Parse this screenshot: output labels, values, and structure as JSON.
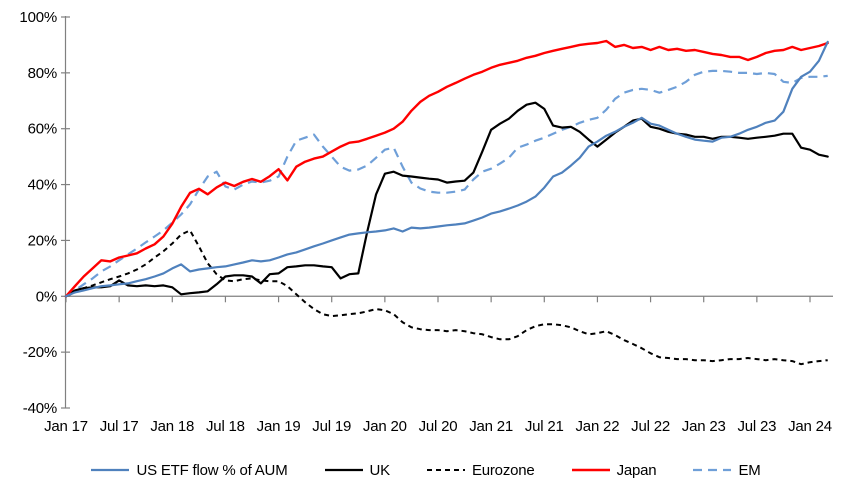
{
  "chart_data": {
    "type": "line",
    "title": "",
    "x_unit": "months, Jan 2017 - Mar 2024",
    "x_tick_labels": [
      "Jan 17",
      "Jul 17",
      "Jan 18",
      "Jul 18",
      "Jan 19",
      "Jul 19",
      "Jan 20",
      "Jul 20",
      "Jan 21",
      "Jul 21",
      "Jan 22",
      "Jul 22",
      "Jan 23",
      "Jul 23",
      "Jan 24"
    ],
    "x_tick_month_indexes": [
      0,
      6,
      12,
      18,
      24,
      30,
      36,
      42,
      48,
      54,
      60,
      66,
      72,
      78,
      84
    ],
    "y_ticks": [
      -40,
      -20,
      0,
      20,
      40,
      60,
      80,
      100
    ],
    "y_tick_labels": [
      "-40%",
      "-20%",
      "0%",
      "20%",
      "40%",
      "60%",
      "80%",
      "100%"
    ],
    "ylim": [
      -40,
      100
    ],
    "grid": "none (zero line only)",
    "legend_position": "bottom",
    "axis_color": "#808080",
    "series": [
      {
        "name": "US ETF flow % of AUM",
        "color": "#4f81bd",
        "dash": null,
        "width": 2.2,
        "values": [
          0,
          1.4,
          2.1,
          2.9,
          3.6,
          3.9,
          4.3,
          4.6,
          5.4,
          6.1,
          7.1,
          8.2,
          10,
          11.4,
          8.9,
          9.6,
          10,
          10.4,
          10.7,
          11.4,
          12.1,
          12.9,
          12.5,
          12.9,
          13.9,
          15,
          15.7,
          16.8,
          17.9,
          18.9,
          20,
          21.1,
          22.1,
          22.5,
          22.9,
          23.2,
          23.6,
          24.3,
          23.2,
          24.6,
          24.3,
          24.6,
          25,
          25.4,
          25.7,
          26.1,
          27.1,
          28.2,
          29.6,
          30.4,
          31.4,
          32.5,
          33.9,
          35.7,
          38.9,
          42.9,
          44.3,
          46.8,
          49.6,
          53.6,
          55.4,
          57.5,
          58.9,
          60.7,
          62.1,
          63.9,
          61.8,
          61.1,
          59.6,
          58.2,
          57.1,
          56.1,
          55.7,
          55.4,
          56.8,
          57.1,
          58.2,
          59.6,
          60.7,
          62.1,
          62.9,
          66.1,
          74.3,
          78.6,
          80.4,
          84.3,
          91.1
        ]
      },
      {
        "name": "UK",
        "color": "#000000",
        "dash": null,
        "width": 2.2,
        "values": [
          0,
          2.1,
          2.9,
          3.2,
          3.2,
          3.6,
          5.7,
          3.9,
          3.6,
          3.9,
          3.6,
          3.9,
          3.2,
          0.7,
          1.1,
          1.4,
          1.8,
          4.3,
          7.1,
          7.5,
          7.5,
          7.1,
          4.6,
          7.9,
          8.2,
          10.4,
          10.7,
          11.1,
          11.1,
          10.7,
          10.4,
          6.4,
          7.9,
          8.2,
          22.9,
          36.4,
          43.9,
          44.6,
          43.2,
          42.9,
          42.5,
          42.1,
          41.8,
          40.7,
          41.1,
          41.4,
          44.3,
          51.8,
          59.6,
          61.8,
          63.6,
          66.4,
          68.6,
          69.3,
          67.1,
          61.1,
          60.4,
          60.7,
          58.9,
          56.1,
          53.6,
          56.1,
          58.6,
          60.7,
          62.9,
          63.6,
          60.7,
          60,
          58.9,
          58.2,
          57.9,
          57.1,
          57.1,
          56.4,
          57.1,
          57.1,
          56.8,
          56.4,
          56.8,
          57.1,
          57.5,
          58.2,
          58.2,
          53.2,
          52.5,
          50.7,
          50
        ]
      },
      {
        "name": "Eurozone",
        "color": "#000000",
        "dash": "5,4",
        "width": 2,
        "values": [
          0,
          1.4,
          2.9,
          3.9,
          5,
          6.1,
          7.1,
          8.2,
          9.6,
          11.4,
          13.9,
          16.1,
          18.9,
          22.1,
          23.6,
          17.9,
          11.8,
          7.9,
          5.7,
          5.4,
          6.1,
          6.4,
          5.7,
          5.4,
          5.4,
          3.6,
          0.7,
          -2.1,
          -4.6,
          -6.4,
          -7.1,
          -6.8,
          -6.4,
          -6.1,
          -5.4,
          -4.6,
          -5,
          -6.4,
          -9.3,
          -11.1,
          -11.8,
          -12.1,
          -12.1,
          -12.5,
          -12.1,
          -12.5,
          -13.2,
          -13.6,
          -14.6,
          -15.4,
          -15.4,
          -14.3,
          -12.1,
          -10.7,
          -10,
          -10,
          -10.4,
          -11.1,
          -12.5,
          -13.6,
          -13.2,
          -12.5,
          -13.9,
          -15.7,
          -17.1,
          -18.6,
          -20.4,
          -21.8,
          -22.1,
          -22.5,
          -22.5,
          -22.9,
          -22.9,
          -23.2,
          -22.9,
          -22.5,
          -22.5,
          -22.1,
          -22.5,
          -22.9,
          -22.5,
          -22.9,
          -23.2,
          -24.3,
          -23.6,
          -23.2,
          -22.9
        ]
      },
      {
        "name": "Japan",
        "color": "#ff0000",
        "dash": null,
        "width": 2.4,
        "values": [
          0,
          3.6,
          7.1,
          10,
          12.9,
          12.5,
          13.9,
          14.6,
          15.4,
          17.1,
          18.6,
          21.4,
          26,
          32,
          37,
          38.5,
          36.5,
          39,
          40.7,
          39.5,
          41,
          42,
          41,
          43,
          45.5,
          41.5,
          46.4,
          48.2,
          49.3,
          50,
          51.8,
          53.6,
          55,
          55.4,
          56.4,
          57.5,
          58.6,
          60,
          62.5,
          66.4,
          69.6,
          71.8,
          73.2,
          75,
          76.4,
          77.9,
          79.3,
          80.4,
          81.8,
          82.9,
          83.6,
          84.3,
          85.4,
          86.1,
          87.1,
          87.9,
          88.6,
          89.3,
          90,
          90.4,
          90.7,
          91.4,
          89.3,
          90,
          88.9,
          89.3,
          88.2,
          89.3,
          88.2,
          88.6,
          87.9,
          88.2,
          87.5,
          86.8,
          86.4,
          85.7,
          85.7,
          84.6,
          85.7,
          87.1,
          87.9,
          88.2,
          89.3,
          88.2,
          88.9,
          89.6,
          90.7
        ]
      },
      {
        "name": "EM",
        "color": "#6f9fd8",
        "dash": "9,6",
        "width": 2.2,
        "values": [
          0,
          2.1,
          4.3,
          6.4,
          8.9,
          10.7,
          12.9,
          15,
          17.1,
          19.3,
          21.4,
          23.6,
          26.4,
          29.3,
          32.9,
          38.2,
          42.9,
          44.6,
          39.3,
          38.2,
          40,
          41.1,
          40.7,
          41.4,
          42.9,
          50,
          55.7,
          56.8,
          57.9,
          53.6,
          50,
          46.4,
          45,
          45.4,
          46.8,
          49.6,
          52.5,
          53.2,
          46.4,
          40.7,
          38.6,
          37.5,
          37.1,
          37.1,
          37.5,
          38.2,
          41.8,
          44.6,
          45.7,
          47.5,
          49.6,
          53.2,
          54.3,
          55.7,
          56.8,
          58.2,
          59.6,
          60.7,
          62.1,
          63.2,
          63.9,
          66.8,
          70.7,
          72.9,
          73.9,
          74.3,
          73.9,
          72.9,
          73.9,
          75,
          76.8,
          79.3,
          80.4,
          80.7,
          80.7,
          80.4,
          80,
          80,
          79.6,
          80,
          79.6,
          76.8,
          76.4,
          78.2,
          78.6,
          78.6,
          78.9
        ]
      }
    ]
  }
}
